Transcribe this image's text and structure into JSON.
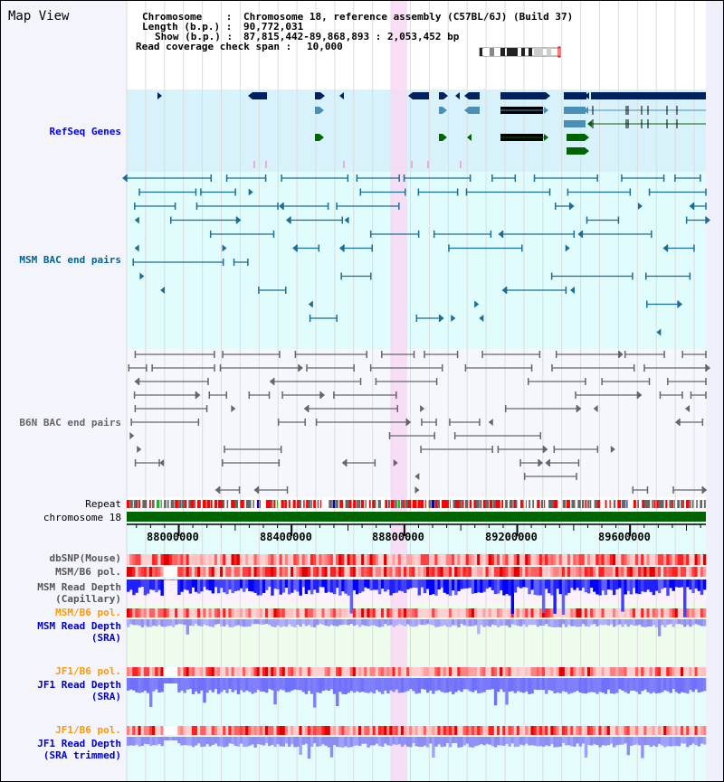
{
  "title": "Map View",
  "header": {
    "chromosome_key": "Chromosome    :",
    "chromosome_val": "Chromosome 18, reference assembly (C57BL/6J) (Build 37)",
    "length_key": "Length (b.p.) :",
    "length_val": "90,772,031",
    "show_key": "Show (b.p.) :",
    "show_val": "87,815,442-89,868,893 : 2,053,452 bp",
    "coverage_key": "Read coverage check span :",
    "coverage_val": "10,000"
  },
  "region": {
    "start": 87815442,
    "end": 89868893,
    "highlight_start": 88750000,
    "highlight_end": 88810000
  },
  "tracks": {
    "refseq": "RefSeq Genes",
    "msm_bac": "MSM BAC end pairs",
    "b6n_bac": "B6N BAC end pairs",
    "repeat": "Repeat",
    "chromosome": "chromosome 18",
    "dbsnp": "dbSNP(Mouse)",
    "msm_b6_pol": "MSM/B6 pol.",
    "msm_depth_cap": "MSM Read Depth\n(Capillary)",
    "msm_b6_pol2": "MSM/B6 pol.",
    "msm_depth_sra": "MSM Read Depth\n(SRA)",
    "jf1_b6_pol": "JF1/B6 pol.",
    "jf1_depth_sra": "JF1 Read Depth\n(SRA)",
    "jf1_b6_pol2": "JF1/B6 pol.",
    "jf1_depth_trim": "JF1 Read Depth\n(SRA trimmed)"
  },
  "ruler": {
    "ticks": [
      "88000000",
      "88400000",
      "88800000",
      "89200000",
      "89600000"
    ],
    "tick_values": [
      88000000,
      88400000,
      88800000,
      89200000,
      89600000
    ]
  },
  "colors": {
    "refseq_label": "#0000ee",
    "msm_label": "#006699",
    "b6n_label": "#666666",
    "orange_label": "#ff9900",
    "blue_label": "#0000cc",
    "gene_navy": "#002060",
    "gene_steel": "#4890b8",
    "gene_green": "#006400",
    "chrom_green": "#006400",
    "highlight": "#f8d8f4"
  }
}
